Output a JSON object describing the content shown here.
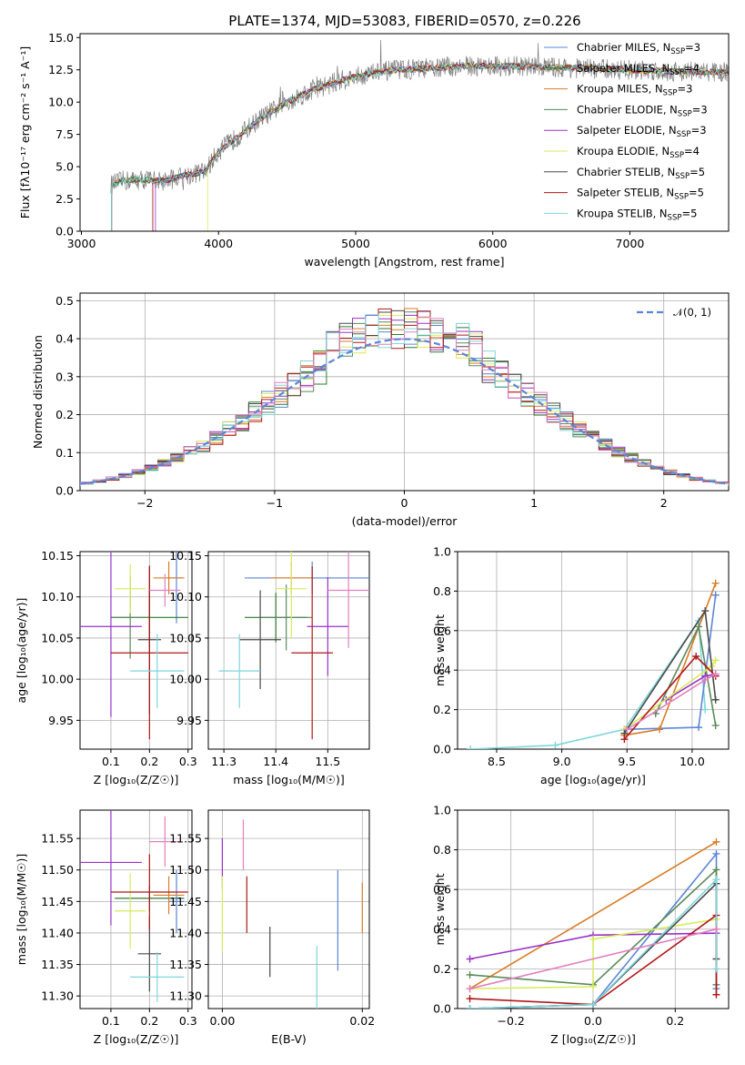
{
  "title": "PLATE=1374, MJD=53083, FIBERID=0570, z=0.226",
  "colors": {
    "Chabrier MILES": "#5b86d6",
    "Salpeter MILES": "#2e7a2e",
    "Kroupa MILES": "#d97c27",
    "Chabrier ELODIE": "#5a8a5a",
    "Salpeter ELODIE": "#9a32c8",
    "Kroupa ELODIE": "#d8ec5e",
    "Chabrier STELIB": "#4a4a4a",
    "Salpeter STELIB": "#b01818",
    "Kroupa STELIB": "#7fd6dc",
    "pink": "#e27fbf",
    "data": "#7f7f7f"
  },
  "chart_data": [
    {
      "type": "line",
      "panel": "spectrum",
      "title": "PLATE=1374, MJD=53083, FIBERID=0570, z=0.226",
      "xlabel": "wavelength [Angstrom, rest frame]",
      "ylabel": "Flux [fλ10⁻¹⁷ erg cm⁻² s⁻¹ A⁻¹]",
      "xlim": [
        2990,
        7720
      ],
      "ylim": [
        0,
        15.3
      ],
      "xticks": [
        "3000",
        "4000",
        "5000",
        "6000",
        "7000"
      ],
      "yticks": [
        "0.0",
        "2.5",
        "5.0",
        "7.5",
        "10.0",
        "12.5",
        "15.0"
      ],
      "legend_position": "top-right",
      "legend": [
        {
          "label": "Chabrier MILES, N",
          "sub": "SSP",
          "tail": "=3",
          "key": "Chabrier MILES"
        },
        {
          "label": "Salpeter MILES, N",
          "sub": "SSP",
          "tail": "=4",
          "key": "Salpeter MILES"
        },
        {
          "label": "Kroupa MILES, N",
          "sub": "SSP",
          "tail": "=3",
          "key": "Kroupa MILES"
        },
        {
          "label": "Chabrier ELODIE, N",
          "sub": "SSP",
          "tail": "=3",
          "key": "Chabrier ELODIE"
        },
        {
          "label": "Salpeter ELODIE, N",
          "sub": "SSP",
          "tail": "=3",
          "key": "Salpeter ELODIE"
        },
        {
          "label": "Kroupa ELODIE, N",
          "sub": "SSP",
          "tail": "=4",
          "key": "Kroupa ELODIE"
        },
        {
          "label": "Chabrier STELIB, N",
          "sub": "SSP",
          "tail": "=5",
          "key": "Chabrier STELIB"
        },
        {
          "label": "Salpeter STELIB, N",
          "sub": "SSP",
          "tail": "=5",
          "key": "Salpeter STELIB"
        },
        {
          "label": "Kroupa STELIB, N",
          "sub": "SSP",
          "tail": "=5",
          "key": "Kroupa STELIB"
        }
      ],
      "continuum": {
        "x": [
          3220,
          3300,
          3450,
          3600,
          3750,
          3900,
          4000,
          4150,
          4300,
          4500,
          4700,
          4900,
          5100,
          5300,
          5500,
          5800,
          6100,
          6400,
          6700,
          7000,
          7300,
          7700
        ],
        "y": [
          3.6,
          3.9,
          4.0,
          3.9,
          4.3,
          4.6,
          6.2,
          7.4,
          8.7,
          10.0,
          11.0,
          11.7,
          12.2,
          12.5,
          12.6,
          12.8,
          12.8,
          12.7,
          12.6,
          12.5,
          12.4,
          12.3
        ]
      },
      "series_wavelength_start": [
        3520,
        3220,
        3220,
        3220,
        3540,
        3920,
        3220,
        3520,
        3220
      ]
    },
    {
      "type": "histogram",
      "panel": "residuals",
      "xlabel": "(data-model)/error",
      "ylabel": "Normed distribution",
      "xlim": [
        -2.5,
        2.5
      ],
      "ylim": [
        0,
        0.52
      ],
      "xticks": [
        "−2",
        "−1",
        "0",
        "1",
        "2"
      ],
      "yticks": [
        "0.0",
        "0.1",
        "0.2",
        "0.3",
        "0.4",
        "0.5"
      ],
      "bin_width": 0.1,
      "reference_curve": {
        "label": "𝒩(0, 1)",
        "mean": 0,
        "sigma": 1,
        "style": "dashed"
      },
      "legend_position": "top-right"
    },
    {
      "type": "scatter",
      "panel": "age-vs-Z",
      "xlabel": "Z [log₁₀(Z/Z☉)]",
      "ylabel": "age  [log₁₀(age/yr)]",
      "xlim": [
        0.02,
        0.31
      ],
      "ylim": [
        9.915,
        10.155
      ],
      "xticks": [
        "0.1",
        "0.2",
        "0.3"
      ],
      "yticks": [
        "9.95",
        "10.00",
        "10.05",
        "10.10",
        "10.15"
      ],
      "points": [
        {
          "key": "Chabrier MILES",
          "x": 0.27,
          "y": 10.123,
          "xerr": 0.02,
          "yerr": 0.055
        },
        {
          "key": "Salpeter MILES",
          "x": 0.2,
          "y": 10.075,
          "xerr": 0.1,
          "yerr": 0.035
        },
        {
          "key": "Kroupa MILES",
          "x": 0.25,
          "y": 10.123,
          "xerr": 0.04,
          "yerr": 0.02
        },
        {
          "key": "Chabrier ELODIE",
          "x": 0.15,
          "y": 10.075,
          "xerr": 0.05,
          "yerr": 0.05
        },
        {
          "key": "Salpeter ELODIE",
          "x": 0.1,
          "y": 10.064,
          "xerr": 0.08,
          "yerr": 0.11
        },
        {
          "key": "Kroupa ELODIE",
          "x": 0.15,
          "y": 10.11,
          "xerr": 0.04,
          "yerr": 0.03
        },
        {
          "key": "Chabrier STELIB",
          "x": 0.2,
          "y": 10.048,
          "xerr": 0.03,
          "yerr": 0.09
        },
        {
          "key": "Salpeter STELIB",
          "x": 0.2,
          "y": 10.032,
          "xerr": 0.1,
          "yerr": 0.105
        },
        {
          "key": "Kroupa STELIB",
          "x": 0.22,
          "y": 10.01,
          "xerr": 0.07,
          "yerr": 0.045
        },
        {
          "key": "pink",
          "x": 0.24,
          "y": 10.108,
          "xerr": 0.04,
          "yerr": 0.02
        }
      ]
    },
    {
      "type": "scatter",
      "panel": "age-vs-mass",
      "xlabel": "mass [log₁₀(M/M☉)]",
      "ylabel": "",
      "xlim": [
        11.27,
        11.58
      ],
      "ylim": [
        9.915,
        10.155
      ],
      "xticks": [
        "11.3",
        "11.4",
        "11.5"
      ],
      "yticks": [
        "9.95",
        "10.00",
        "10.05",
        "10.10",
        "10.15"
      ],
      "points": [
        {
          "key": "Chabrier MILES",
          "x": 11.47,
          "y": 10.123,
          "xerr": 0.13,
          "yerr": 0.02
        },
        {
          "key": "Salpeter MILES",
          "x": 11.4,
          "y": 10.075,
          "xerr": 0.06,
          "yerr": 0.03
        },
        {
          "key": "Kroupa MILES",
          "x": 11.43,
          "y": 10.123,
          "xerr": 0.04,
          "yerr": 0.02
        },
        {
          "key": "Chabrier ELODIE",
          "x": 11.42,
          "y": 10.075,
          "xerr": 0.05,
          "yerr": 0.04
        },
        {
          "key": "Salpeter ELODIE",
          "x": 11.5,
          "y": 10.064,
          "xerr": 0.04,
          "yerr": 0.06
        },
        {
          "key": "Kroupa ELODIE",
          "x": 11.43,
          "y": 10.11,
          "xerr": 0.03,
          "yerr": 0.06
        },
        {
          "key": "Chabrier STELIB",
          "x": 11.37,
          "y": 10.048,
          "xerr": 0.04,
          "yerr": 0.06
        },
        {
          "key": "Salpeter STELIB",
          "x": 11.47,
          "y": 10.032,
          "xerr": 0.04,
          "yerr": 0.105
        },
        {
          "key": "Kroupa STELIB",
          "x": 11.33,
          "y": 10.01,
          "xerr": 0.04,
          "yerr": 0.045
        },
        {
          "key": "pink",
          "x": 11.54,
          "y": 10.108,
          "xerr": 0.04,
          "yerr": 0.07
        }
      ]
    },
    {
      "type": "line",
      "panel": "mass-weight-vs-age",
      "xlabel": "age  [log₁₀(age/yr)]",
      "ylabel": "mass weight",
      "xlim": [
        8.2,
        10.28
      ],
      "ylim": [
        0,
        1.0
      ],
      "xticks": [
        "8.5",
        "9.0",
        "9.5",
        "10.0"
      ],
      "yticks": [
        "0.0",
        "0.2",
        "0.4",
        "0.6",
        "0.8",
        "1.0"
      ],
      "series": [
        {
          "key": "Kroupa STELIB",
          "x": [
            8.3,
            8.95,
            9.48,
            10.05,
            10.1
          ],
          "y": [
            0.0,
            0.02,
            0.1,
            0.65,
            0.2
          ]
        },
        {
          "key": "Chabrier MILES",
          "x": [
            9.48,
            10.05,
            10.18
          ],
          "y": [
            0.1,
            0.11,
            0.78
          ]
        },
        {
          "key": "Kroupa MILES",
          "x": [
            9.48,
            9.75,
            10.18
          ],
          "y": [
            0.07,
            0.1,
            0.84
          ]
        },
        {
          "key": "Chabrier ELODIE",
          "x": [
            9.72,
            10.05,
            10.18
          ],
          "y": [
            0.18,
            0.62,
            0.12
          ]
        },
        {
          "key": "Salpeter ELODIE",
          "x": [
            9.8,
            10.1,
            10.18
          ],
          "y": [
            0.25,
            0.37,
            0.38
          ]
        },
        {
          "key": "Kroupa ELODIE",
          "x": [
            9.48,
            10.15,
            10.18
          ],
          "y": [
            0.1,
            0.42,
            0.45
          ]
        },
        {
          "key": "Chabrier STELIB",
          "x": [
            9.48,
            10.1,
            10.18
          ],
          "y": [
            0.08,
            0.7,
            0.25
          ]
        },
        {
          "key": "Salpeter STELIB",
          "x": [
            9.48,
            10.03,
            10.18
          ],
          "y": [
            0.05,
            0.47,
            0.37
          ]
        },
        {
          "key": "pink",
          "x": [
            9.5,
            10.1,
            10.18
          ],
          "y": [
            0.1,
            0.35,
            0.38
          ]
        }
      ]
    },
    {
      "type": "scatter",
      "panel": "mass-vs-Z",
      "xlabel": "Z [log₁₀(Z/Z☉)]",
      "ylabel": "mass [log₁₀(M/M☉)]",
      "xlim": [
        0.02,
        0.31
      ],
      "ylim": [
        11.28,
        11.595
      ],
      "xticks": [
        "0.1",
        "0.2",
        "0.3"
      ],
      "yticks": [
        "11.30",
        "11.35",
        "11.40",
        "11.45",
        "11.50",
        "11.55"
      ],
      "points": [
        {
          "key": "Chabrier MILES",
          "x": 0.27,
          "y": 11.45,
          "xerr": 0.02,
          "yerr": 0.05
        },
        {
          "key": "Salpeter MILES",
          "x": 0.2,
          "y": 11.455,
          "xerr": 0.09,
          "yerr": 0.02
        },
        {
          "key": "Kroupa MILES",
          "x": 0.25,
          "y": 11.46,
          "xerr": 0.04,
          "yerr": 0.03
        },
        {
          "key": "Salpeter ELODIE",
          "x": 0.1,
          "y": 11.512,
          "xerr": 0.08,
          "yerr": 0.1
        },
        {
          "key": "Kroupa ELODIE",
          "x": 0.15,
          "y": 11.435,
          "xerr": 0.04,
          "yerr": 0.06
        },
        {
          "key": "Chabrier STELIB",
          "x": 0.2,
          "y": 11.367,
          "xerr": 0.03,
          "yerr": 0.06
        },
        {
          "key": "Salpeter STELIB",
          "x": 0.2,
          "y": 11.465,
          "xerr": 0.1,
          "yerr": 0.06
        },
        {
          "key": "Kroupa STELIB",
          "x": 0.22,
          "y": 11.33,
          "xerr": 0.07,
          "yerr": 0.04
        },
        {
          "key": "pink",
          "x": 0.24,
          "y": 11.545,
          "xerr": 0.04,
          "yerr": 0.04
        }
      ]
    },
    {
      "type": "scatter",
      "panel": "mass-vs-ebv",
      "xlabel": "E(B-V)",
      "ylabel": "",
      "xlim": [
        -0.002,
        0.021
      ],
      "ylim": [
        11.28,
        11.595
      ],
      "xticks": [
        "0.00",
        "0.02"
      ],
      "yticks": [
        "11.30",
        "11.35",
        "11.40",
        "11.45",
        "11.50",
        "11.55"
      ],
      "points": [
        {
          "key": "Salpeter ELODIE",
          "x": 0.0,
          "y": 11.51,
          "yerr": 0.04
        },
        {
          "key": "Kroupa ELODIE",
          "x": 0.0,
          "y": 11.43,
          "yerr": 0.06
        },
        {
          "key": "pink",
          "x": 0.003,
          "y": 11.54,
          "yerr": 0.04
        },
        {
          "key": "Salpeter STELIB",
          "x": 0.0035,
          "y": 11.445,
          "yerr": 0.045
        },
        {
          "key": "Chabrier STELIB",
          "x": 0.0068,
          "y": 11.37,
          "yerr": 0.04
        },
        {
          "key": "Kroupa STELIB",
          "x": 0.0135,
          "y": 11.33,
          "yerr": 0.05
        },
        {
          "key": "Chabrier MILES",
          "x": 0.0165,
          "y": 11.42,
          "yerr": 0.08
        },
        {
          "key": "Kroupa MILES",
          "x": 0.02,
          "y": 11.44,
          "yerr": 0.04
        }
      ]
    },
    {
      "type": "line",
      "panel": "mass-weight-vs-Z",
      "xlabel": "Z [log₁₀(Z/Z☉)]",
      "ylabel": "mass weight",
      "xlim": [
        -0.33,
        0.33
      ],
      "ylim": [
        0,
        1.0
      ],
      "xticks": [
        "−0.2",
        "0.0",
        "0.2"
      ],
      "yticks": [
        "0.0",
        "0.2",
        "0.4",
        "0.6",
        "0.8",
        "1.0"
      ],
      "series": [
        {
          "key": "Kroupa MILES",
          "x": [
            -0.3,
            0.3
          ],
          "y": [
            0.1,
            0.84
          ]
        },
        {
          "key": "Chabrier MILES",
          "x": [
            -0.3,
            0.0,
            0.3,
            0.3
          ],
          "y": [
            0.0,
            0.02,
            0.78,
            0.1
          ]
        },
        {
          "key": "Chabrier ELODIE",
          "x": [
            -0.3,
            0.0,
            0.3,
            0.3
          ],
          "y": [
            0.17,
            0.12,
            0.7,
            0.12
          ]
        },
        {
          "key": "Salpeter ELODIE",
          "x": [
            -0.3,
            0.0,
            0.3
          ],
          "y": [
            0.25,
            0.37,
            0.38
          ]
        },
        {
          "key": "Kroupa ELODIE",
          "x": [
            -0.3,
            0.0,
            0.0,
            0.3
          ],
          "y": [
            0.1,
            0.11,
            0.35,
            0.45
          ]
        },
        {
          "key": "Chabrier STELIB",
          "x": [
            -0.3,
            0.0,
            0.3,
            0.3
          ],
          "y": [
            0.0,
            0.02,
            0.63,
            0.25
          ]
        },
        {
          "key": "Salpeter STELIB",
          "x": [
            -0.3,
            0.0,
            0.3,
            0.3
          ],
          "y": [
            0.05,
            0.02,
            0.47,
            0.07
          ]
        },
        {
          "key": "Kroupa STELIB",
          "x": [
            -0.3,
            0.0,
            0.3,
            0.3
          ],
          "y": [
            0.0,
            0.02,
            0.65,
            0.2
          ]
        },
        {
          "key": "pink",
          "x": [
            -0.3,
            0.3
          ],
          "y": [
            0.1,
            0.4
          ]
        }
      ]
    }
  ]
}
